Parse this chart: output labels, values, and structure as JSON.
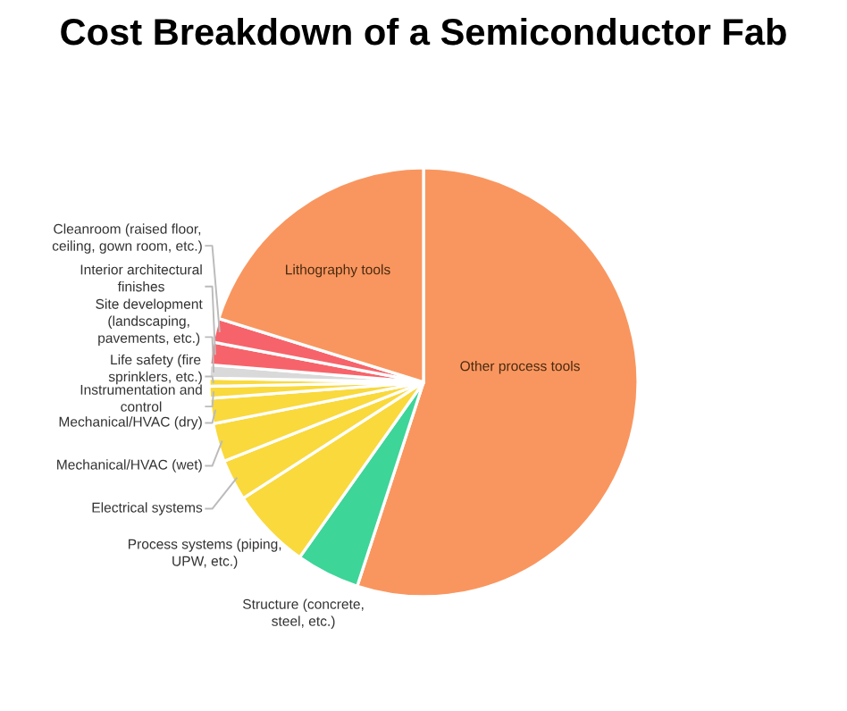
{
  "chart_data": {
    "type": "pie",
    "title": "Cost Breakdown of a Semiconductor Fab",
    "categories": [
      "Other process tools",
      "Structure (concrete,\nsteel, etc.)",
      "Process systems (piping,\nUPW, etc.)",
      "Electrical systems",
      "Mechanical/HVAC (wet)",
      "Mechanical/HVAC (dry)",
      "Instrumentation and\ncontrol",
      "Life safety (fire\nsprinklers, etc.)",
      "Site development\n(landscaping,\npavements, etc.)",
      "Interior architectural\nfinishes",
      "Cleanroom (raised floor,\nceiling, gown room, etc.)",
      "Lithography tools"
    ],
    "values": [
      55.0,
      4.8,
      6.1,
      3.1,
      2.9,
      1.9,
      0.9,
      0.6,
      1.0,
      1.7,
      1.8,
      20.2
    ],
    "colors": [
      "#f9965f",
      "#3dd598",
      "#f9d93c",
      "#f9d93c",
      "#f9d93c",
      "#f9d93c",
      "#f9d93c",
      "#f9d93c",
      "#d9d9d9",
      "#f7636a",
      "#f7636a",
      "#f9965f"
    ],
    "legend": false
  }
}
